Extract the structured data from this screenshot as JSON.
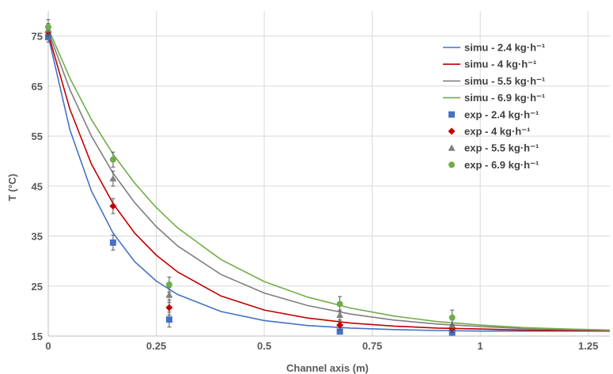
{
  "chart_data": {
    "type": "line",
    "title": "",
    "xlabel": "Channel axis (m)",
    "ylabel": "T (°C)",
    "xlim": [
      0,
      1.3
    ],
    "ylim": [
      15,
      80
    ],
    "x_ticks": [
      0,
      0.25,
      0.5,
      0.75,
      1,
      1.25
    ],
    "x_tick_labels": [
      "0",
      "0.25",
      "0.5",
      "0.75",
      "1",
      "1.25"
    ],
    "y_ticks": [
      15,
      25,
      35,
      45,
      55,
      65,
      75
    ],
    "y_tick_labels": [
      "15",
      "25",
      "35",
      "45",
      "55",
      "65",
      "75"
    ],
    "grid": true,
    "legend_position": "top-right",
    "series": [
      {
        "name": "simu - 2.4 kg·h⁻¹",
        "kind": "line",
        "color": "#4472c4",
        "x": [
          0,
          0.05,
          0.1,
          0.15,
          0.2,
          0.25,
          0.3,
          0.4,
          0.5,
          0.6,
          0.7,
          0.8,
          0.9,
          1.0,
          1.1,
          1.2,
          1.3
        ],
        "y": [
          75.0,
          56.3,
          44.0,
          35.6,
          29.9,
          26.0,
          23.3,
          19.9,
          18.1,
          17.1,
          16.6,
          16.3,
          16.1,
          16.0,
          16.0,
          16.0,
          16.0
        ]
      },
      {
        "name": "simu - 4 kg·h⁻¹",
        "kind": "line",
        "color": "#c00000",
        "x": [
          0,
          0.05,
          0.1,
          0.15,
          0.2,
          0.25,
          0.3,
          0.4,
          0.5,
          0.6,
          0.7,
          0.8,
          0.9,
          1.0,
          1.1,
          1.2,
          1.3
        ],
        "y": [
          75.5,
          60.4,
          49.4,
          41.5,
          35.6,
          31.2,
          27.8,
          23.0,
          20.2,
          18.6,
          17.6,
          17.0,
          16.6,
          16.4,
          16.2,
          16.1,
          16.0
        ]
      },
      {
        "name": "simu - 5.5 kg·h⁻¹",
        "kind": "line",
        "color": "#7f7f7f",
        "x": [
          0,
          0.05,
          0.1,
          0.15,
          0.2,
          0.25,
          0.3,
          0.4,
          0.5,
          0.6,
          0.7,
          0.8,
          0.9,
          1.0,
          1.1,
          1.2,
          1.3
        ],
        "y": [
          76.0,
          64.3,
          55.0,
          47.6,
          41.7,
          36.9,
          33.0,
          27.3,
          23.6,
          21.1,
          19.4,
          18.2,
          17.4,
          16.9,
          16.5,
          16.3,
          16.1
        ]
      },
      {
        "name": "simu - 6.9 kg·h⁻¹",
        "kind": "line",
        "color": "#70ad47",
        "x": [
          0,
          0.05,
          0.1,
          0.15,
          0.2,
          0.25,
          0.3,
          0.4,
          0.5,
          0.6,
          0.7,
          0.8,
          0.9,
          1.0,
          1.1,
          1.2,
          1.3
        ],
        "y": [
          76.5,
          66.6,
          58.3,
          51.4,
          45.6,
          40.7,
          36.6,
          30.3,
          25.9,
          22.8,
          20.6,
          19.0,
          17.9,
          17.2,
          16.7,
          16.4,
          16.2
        ]
      },
      {
        "name": "exp - 2.4 kg·h⁻¹",
        "kind": "scatter",
        "marker": "square",
        "color": "#4472c4",
        "x": [
          0,
          0.15,
          0.28,
          0.675,
          0.935
        ],
        "y": [
          74.8,
          33.7,
          18.3,
          15.9,
          15.7
        ],
        "err": [
          1.0,
          1.5,
          1.5,
          0.5,
          0.5
        ]
      },
      {
        "name": "exp - 4 kg·h⁻¹",
        "kind": "scatter",
        "marker": "diamond",
        "color": "#c00000",
        "x": [
          0,
          0.15,
          0.28,
          0.675,
          0.935
        ],
        "y": [
          75.8,
          41.0,
          20.7,
          17.2,
          16.5
        ],
        "err": [
          1.0,
          1.5,
          1.5,
          1.0,
          0.8
        ]
      },
      {
        "name": "exp - 5.5 kg·h⁻¹",
        "kind": "scatter",
        "marker": "triangle",
        "color": "#7f7f7f",
        "x": [
          0,
          0.15,
          0.28,
          0.675,
          0.935
        ],
        "y": [
          76.3,
          46.5,
          23.2,
          19.2,
          17.2
        ],
        "err": [
          1.2,
          1.5,
          1.5,
          1.0,
          1.0
        ]
      },
      {
        "name": "exp - 6.9 kg·h⁻¹",
        "kind": "scatter",
        "marker": "circle",
        "color": "#70ad47",
        "x": [
          0,
          0.15,
          0.28,
          0.675,
          0.935
        ],
        "y": [
          76.8,
          50.3,
          25.3,
          21.4,
          18.7
        ],
        "err": [
          1.5,
          1.5,
          1.5,
          1.5,
          1.5
        ]
      }
    ]
  }
}
